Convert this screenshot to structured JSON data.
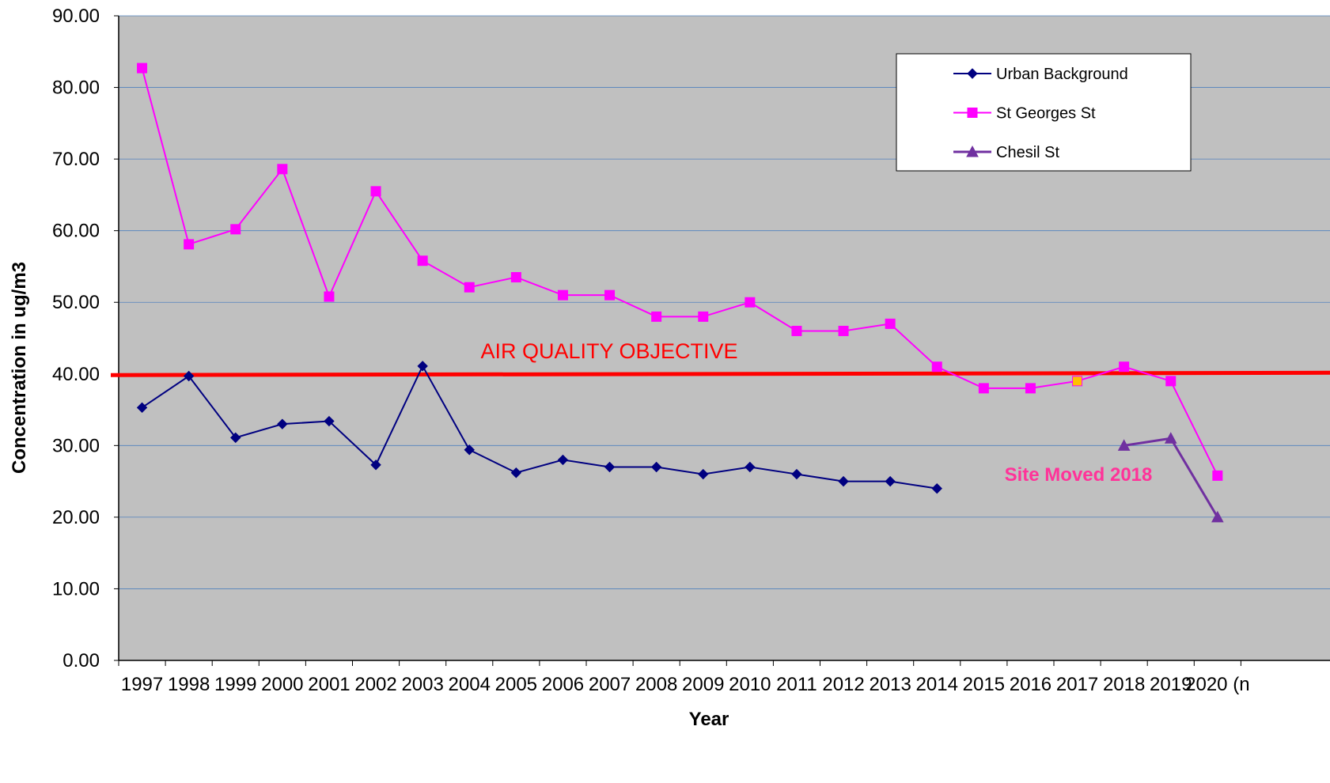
{
  "chart_data": {
    "type": "line",
    "title": "",
    "xlabel": "Year",
    "ylabel": "Concentration in ug/m3",
    "ylim": [
      0,
      90
    ],
    "ytick_step": 10,
    "ytick_labels": [
      "0.00",
      "10.00",
      "20.00",
      "30.00",
      "40.00",
      "50.00",
      "60.00",
      "70.00",
      "80.00",
      "90.00"
    ],
    "categories": [
      "1997",
      "1998",
      "1999",
      "2000",
      "2001",
      "2002",
      "2003",
      "2004",
      "2005",
      "2006",
      "2007",
      "2008",
      "2009",
      "2010",
      "2011",
      "2012",
      "2013",
      "2014",
      "2015",
      "2016",
      "2017",
      "2018",
      "2019",
      "2020 (n"
    ],
    "grid": true,
    "legend_position": "top-right",
    "plot_background": "#c0c0c0",
    "series": [
      {
        "name": "Urban Background",
        "marker": "diamond",
        "color": "#000080",
        "values": [
          35.3,
          39.7,
          31.1,
          33.0,
          33.4,
          27.3,
          41.1,
          29.4,
          26.2,
          28.0,
          27.0,
          27.0,
          26.0,
          27.0,
          26.0,
          25.0,
          25.0,
          24.0,
          null,
          null,
          null,
          null,
          null,
          null
        ]
      },
      {
        "name": "St Georges St",
        "marker": "square",
        "color": "#ff00ff",
        "values": [
          82.7,
          58.1,
          60.2,
          68.6,
          50.8,
          65.5,
          55.8,
          52.1,
          53.5,
          51.0,
          51.0,
          48.0,
          48.0,
          50.0,
          46.0,
          46.0,
          47.0,
          41.0,
          38.0,
          38.0,
          39.0,
          41.0,
          39.0,
          25.8
        ],
        "highlight_index": 20,
        "highlight_color": "#ffc000"
      },
      {
        "name": "Chesil St",
        "marker": "triangle",
        "color": "#7030a0",
        "values": [
          null,
          null,
          null,
          null,
          null,
          null,
          null,
          null,
          null,
          null,
          null,
          null,
          null,
          null,
          null,
          null,
          null,
          null,
          null,
          null,
          null,
          30.0,
          31.0,
          20.0
        ]
      }
    ],
    "reference_line": {
      "value": 40,
      "label": "AIR QUALITY OBJECTIVE",
      "color": "#ff0000"
    },
    "annotations": [
      {
        "text": "Site Moved 2018",
        "color": "#ff3399"
      }
    ]
  }
}
